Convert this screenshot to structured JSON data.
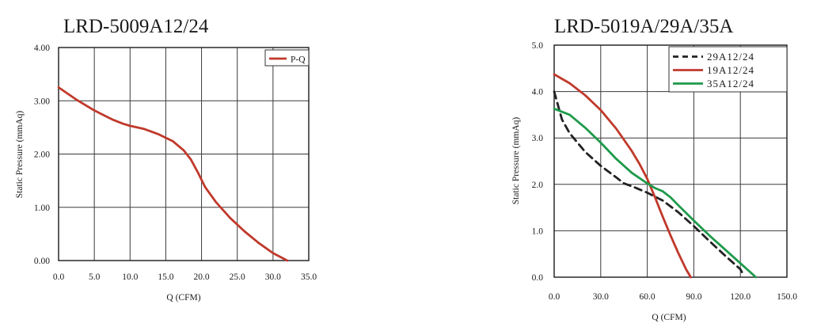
{
  "chart_data": [
    {
      "type": "line",
      "title": "LRD-5009A12/24",
      "xlabel": "Q (CFM)",
      "ylabel": "Static Pressure (mmAq)",
      "xlim": [
        0,
        35
      ],
      "ylim": [
        0,
        4
      ],
      "x_ticks": [
        "0.0",
        "5.0",
        "10.0",
        "15.0",
        "20.0",
        "25.0",
        "30.0",
        "35.0"
      ],
      "y_ticks": [
        "0.00",
        "1.00",
        "2.00",
        "3.00",
        "4.00"
      ],
      "grid": true,
      "legend_position": "top-right",
      "series": [
        {
          "name": "P-Q",
          "color": "#c0392b",
          "dash": "solid",
          "x": [
            0,
            2.5,
            5,
            7.5,
            9,
            10,
            12,
            14,
            16,
            17.5,
            18.5,
            19.5,
            20.5,
            22,
            24,
            26,
            28,
            30,
            32
          ],
          "y": [
            3.25,
            3.02,
            2.82,
            2.65,
            2.57,
            2.53,
            2.47,
            2.37,
            2.24,
            2.07,
            1.9,
            1.65,
            1.38,
            1.1,
            0.8,
            0.55,
            0.33,
            0.14,
            0.0
          ]
        }
      ]
    },
    {
      "type": "line",
      "title": "LRD-5019A/29A/35A",
      "xlabel": "Q (CFM)",
      "ylabel": "Static Pressure (mmAq)",
      "xlim": [
        0,
        150
      ],
      "ylim": [
        0,
        5
      ],
      "x_ticks": [
        "0.0",
        "30.0",
        "60.0",
        "90.0",
        "120.0",
        "150.0"
      ],
      "y_ticks": [
        "0.0",
        "1.0",
        "2.0",
        "3.0",
        "4.0",
        "5.0"
      ],
      "grid": true,
      "legend_position": "top-right",
      "series": [
        {
          "name": "29A12/24",
          "color": "#222222",
          "dash": "dashed",
          "x": [
            0,
            5,
            10,
            20,
            30,
            40,
            45,
            50,
            60,
            70,
            80,
            90,
            100,
            110,
            120,
            122
          ],
          "y": [
            4.0,
            3.4,
            3.1,
            2.7,
            2.4,
            2.15,
            2.02,
            1.96,
            1.82,
            1.65,
            1.4,
            1.1,
            0.78,
            0.47,
            0.17,
            0.05
          ]
        },
        {
          "name": "19A12/24",
          "color": "#c0392b",
          "dash": "solid",
          "x": [
            0,
            10,
            20,
            30,
            40,
            50,
            55,
            60,
            65,
            70,
            75,
            80,
            85,
            88
          ],
          "y": [
            4.37,
            4.18,
            3.92,
            3.6,
            3.2,
            2.72,
            2.44,
            2.12,
            1.72,
            1.3,
            0.9,
            0.52,
            0.17,
            0.0
          ]
        },
        {
          "name": "35A12/24",
          "color": "#1e9a4a",
          "dash": "solid",
          "x": [
            0,
            10,
            20,
            30,
            40,
            50,
            60,
            65,
            70,
            75,
            80,
            90,
            100,
            110,
            120,
            130
          ],
          "y": [
            3.63,
            3.5,
            3.22,
            2.9,
            2.55,
            2.25,
            2.02,
            1.92,
            1.85,
            1.72,
            1.55,
            1.22,
            0.9,
            0.6,
            0.3,
            0.0
          ]
        }
      ]
    }
  ]
}
